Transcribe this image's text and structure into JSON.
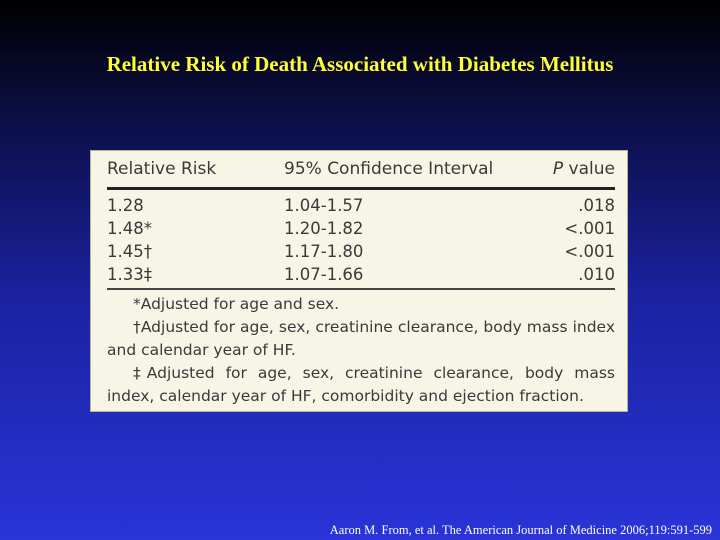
{
  "slide": {
    "title": "Relative Risk of Death Associated with Diabetes Mellitus",
    "citation": "Aaron M. From, et al. The American Journal of Medicine 2006;119:591-599"
  },
  "table": {
    "headers": {
      "relative_risk": "Relative Risk",
      "ci": "95% Confidence Interval",
      "p_italic": "P",
      "p_rest": " value"
    },
    "rows": [
      {
        "rr": "1.28",
        "ci": "1.04-1.57",
        "p": ".018"
      },
      {
        "rr": "1.48*",
        "ci": "1.20-1.82",
        "p": "<.001"
      },
      {
        "rr": "1.45†",
        "ci": "1.17-1.80",
        "p": "<.001"
      },
      {
        "rr": "1.33‡",
        "ci": "1.07-1.66",
        "p": ".010"
      }
    ],
    "footnotes": [
      "*Adjusted for age and sex.",
      "†Adjusted for age, sex, creatinine clearance, body mass index and calendar year of HF.",
      "‡Adjusted for age, sex, creatinine clearance, body mass index, calendar year of HF, comorbidity and ejection fraction."
    ]
  }
}
